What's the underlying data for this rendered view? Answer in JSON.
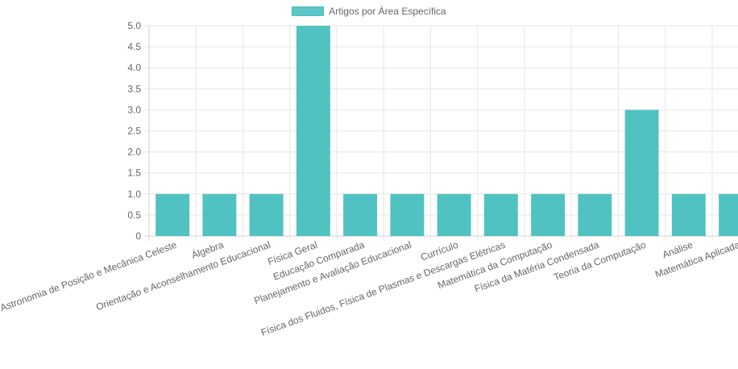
{
  "chart_data": {
    "type": "bar",
    "title": "",
    "xlabel": "",
    "ylabel": "",
    "ylim": [
      0,
      5
    ],
    "yticks": [
      "0",
      "0.5",
      "1.0",
      "1.5",
      "2.0",
      "2.5",
      "3.0",
      "3.5",
      "4.0",
      "4.5",
      "5.0"
    ],
    "grid": true,
    "legend_position": "top-center",
    "bar_color": "#4bc0c0",
    "categories": [
      "Astronomia de Posição e Mecânica Celeste",
      "Álgebra",
      "Orientação e Aconselhamento Educacional",
      "Física Geral",
      "Educação Comparada",
      "Planejamento e Avaliação Educacional",
      "Currículo",
      "Física dos Fluidos, Física de Plasmas e Descargas Elétricas",
      "Matemática da Computação",
      "Física da Matéria Condensada",
      "Teoria da Computação",
      "Análise",
      "Matemática Aplicada"
    ],
    "series": [
      {
        "name": "Artigos por Área Específica",
        "values": [
          1,
          1,
          1,
          5,
          1,
          1,
          1,
          1,
          1,
          1,
          3,
          1,
          1
        ]
      }
    ]
  }
}
